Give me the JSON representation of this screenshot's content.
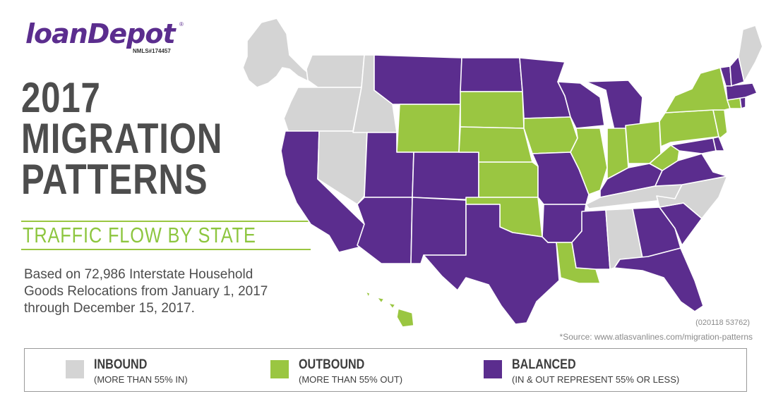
{
  "brand": {
    "logo_text": "loanDepot",
    "trademark": "®",
    "nmls": "NMLS#174457",
    "purple": "#5b2d8e",
    "green": "#9ac641",
    "gray": "#d4d4d4"
  },
  "headline": {
    "line1": "2017",
    "line2": "MIGRATION",
    "line3": "PATTERNS"
  },
  "subtitle": "TRAFFIC FLOW BY STATE",
  "description": {
    "line1": "Based on 72,986 Interstate Household",
    "line2": "Goods Relocations from January 1, 2017",
    "line3": "through December 15, 2017."
  },
  "code": "(020118 53762)",
  "source": "*Source: www.atlasvanlines.com/migration-patterns",
  "legend": [
    {
      "title": "INBOUND",
      "desc": "(MORE THAN 55% IN)",
      "color": "#d4d4d4"
    },
    {
      "title": "OUTBOUND",
      "desc": "(MORE THAN 55% OUT)",
      "color": "#9ac641"
    },
    {
      "title": "BALANCED",
      "desc": "(IN & OUT REPRESENT 55% OR LESS)",
      "color": "#5b2d8e"
    }
  ],
  "states": {
    "inbound": [
      "WA",
      "OR",
      "ID",
      "NV",
      "AL",
      "TN",
      "NC",
      "ME",
      "AK"
    ],
    "outbound": [
      "WY",
      "SD",
      "NE",
      "KS",
      "OK",
      "IA",
      "IL",
      "IN",
      "OH",
      "WV",
      "PA",
      "NY",
      "NJ",
      "CT",
      "LA",
      "HI"
    ],
    "balanced": [
      "CA",
      "MT",
      "ND",
      "MN",
      "WI",
      "MI",
      "UT",
      "CO",
      "AZ",
      "NM",
      "TX",
      "MO",
      "AR",
      "MS",
      "KY",
      "VA",
      "MD",
      "DE",
      "GA",
      "SC",
      "FL",
      "VT",
      "NH",
      "MA",
      "RI"
    ]
  }
}
